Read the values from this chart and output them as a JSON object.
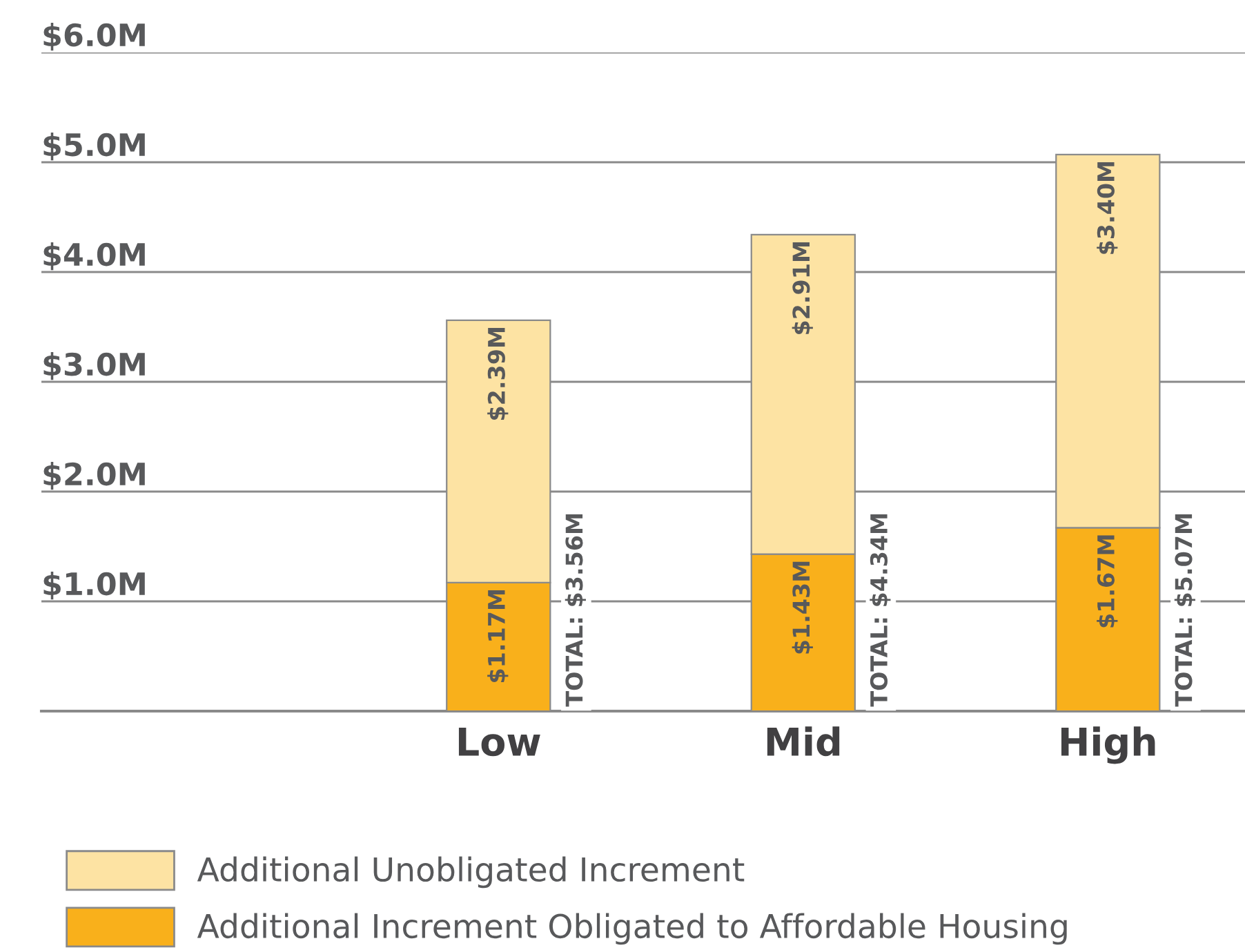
{
  "chart_data": {
    "type": "bar",
    "stacked": true,
    "categories": [
      "Low",
      "Mid",
      "High"
    ],
    "series": [
      {
        "name": "Additional Increment Obligated to Affordable Housing",
        "color": "#f9b01b",
        "values": [
          1.17,
          1.43,
          1.67
        ],
        "value_labels": [
          "$1.17M",
          "$1.43M",
          "$1.67M"
        ]
      },
      {
        "name": "Additional Unobligated Increment",
        "color": "#fde3a3",
        "values": [
          2.39,
          2.91,
          3.4
        ],
        "value_labels": [
          "$2.39M",
          "$2.91M",
          "$3.40M"
        ]
      }
    ],
    "totals": [
      "TOTAL: $3.56M",
      "TOTAL: $4.34M",
      "TOTAL: $5.07M"
    ],
    "ylim": [
      0,
      6
    ],
    "yticks": [
      {
        "value": 0,
        "label": null
      },
      {
        "value": 1,
        "label": "$1.0M"
      },
      {
        "value": 2,
        "label": "$2.0M"
      },
      {
        "value": 3,
        "label": "$3.0M"
      },
      {
        "value": 4,
        "label": "$4.0M"
      },
      {
        "value": 5,
        "label": "$5.0M"
      },
      {
        "value": 6,
        "label": "$6.0M"
      }
    ],
    "grid": "y",
    "legend": "bottom"
  }
}
